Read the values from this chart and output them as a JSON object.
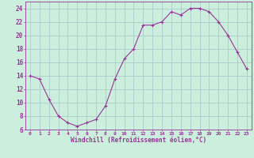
{
  "x": [
    0,
    1,
    2,
    3,
    4,
    5,
    6,
    7,
    8,
    9,
    10,
    11,
    12,
    13,
    14,
    15,
    16,
    17,
    18,
    19,
    20,
    21,
    22,
    23
  ],
  "y": [
    14,
    13.5,
    10.5,
    8,
    7,
    6.5,
    7,
    7.5,
    9.5,
    13.5,
    16.5,
    18,
    21.5,
    21.5,
    22,
    23.5,
    23,
    24,
    24,
    23.5,
    22,
    20,
    17.5,
    15
  ],
  "line_color": "#993399",
  "marker_color": "#993399",
  "bg_color": "#cceedd",
  "grid_color": "#aacccc",
  "xlabel": "Windchill (Refroidissement éolien,°C)",
  "xlabel_color": "#993399",
  "tick_color": "#993399",
  "ylim": [
    6,
    25
  ],
  "xlim": [
    -0.5,
    23.5
  ],
  "yticks": [
    6,
    8,
    10,
    12,
    14,
    16,
    18,
    20,
    22,
    24
  ],
  "xticks": [
    0,
    1,
    2,
    3,
    4,
    5,
    6,
    7,
    8,
    9,
    10,
    11,
    12,
    13,
    14,
    15,
    16,
    17,
    18,
    19,
    20,
    21,
    22,
    23
  ],
  "xtick_labels": [
    "0",
    "1",
    "2",
    "3",
    "4",
    "5",
    "6",
    "7",
    "8",
    "9",
    "10",
    "11",
    "12",
    "13",
    "14",
    "15",
    "16",
    "17",
    "18",
    "19",
    "20",
    "21",
    "22",
    "23"
  ]
}
